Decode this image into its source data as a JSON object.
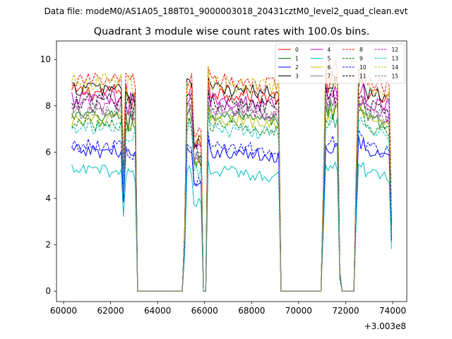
{
  "figure": {
    "supertitle": "Data file: modeM0/AS1A05_188T01_9000003018_20431cztM0_level2_quad_clean.evt"
  },
  "chart_data": {
    "type": "line",
    "title": "Quadrant 3 module wise count rates with 100.0s bins.",
    "xlabel": "",
    "ylabel": "",
    "x_offset_label": "+3.003e8",
    "xlim": [
      59700,
      74600
    ],
    "ylim": [
      -0.45,
      10.8
    ],
    "x_ticks": [
      60000,
      62000,
      64000,
      66000,
      68000,
      70000,
      72000,
      74000
    ],
    "x_tick_labels": [
      "60000",
      "62000",
      "64000",
      "66000",
      "68000",
      "70000",
      "72000",
      "74000"
    ],
    "y_ticks": [
      0,
      2,
      4,
      6,
      8,
      10
    ],
    "y_tick_labels": [
      "0",
      "2",
      "4",
      "6",
      "8",
      "10"
    ],
    "grid": false,
    "legend_position": "top-right",
    "legend_columns": 4,
    "bin_seconds": 100,
    "x_start": 60350,
    "active_intervals": [
      [
        60350,
        62450
      ],
      [
        62550,
        63050
      ],
      [
        65350,
        65950
      ],
      [
        66150,
        69150
      ],
      [
        71050,
        71850
      ],
      [
        72550,
        73950
      ]
    ],
    "zero_intervals": [
      [
        63150,
        65050
      ],
      [
        66050,
        66050
      ],
      [
        69250,
        70950
      ],
      [
        72050,
        72350
      ]
    ],
    "transitions": [
      [
        62450,
        62550,
        0.6
      ],
      [
        63050,
        63150,
        0
      ],
      [
        65050,
        65250,
        0.3
      ],
      [
        65950,
        66050,
        0
      ],
      [
        66050,
        66150,
        1.02
      ],
      [
        69150,
        69250,
        0
      ],
      [
        70950,
        71050,
        0.5
      ],
      [
        71850,
        72050,
        0.1
      ],
      [
        72350,
        72550,
        0.6
      ],
      [
        73950,
        73950,
        0.35
      ]
    ],
    "series": [
      {
        "name": "0",
        "color": "#ff0000",
        "dash": "solid",
        "level": 8.6,
        "noise": 0.35
      },
      {
        "name": "1",
        "color": "#008000",
        "dash": "solid",
        "level": 7.55,
        "noise": 0.3
      },
      {
        "name": "2",
        "color": "#0000ff",
        "dash": "solid",
        "level": 6.05,
        "noise": 0.3
      },
      {
        "name": "3",
        "color": "#000000",
        "dash": "solid",
        "level": 8.75,
        "noise": 0.35
      },
      {
        "name": "4",
        "color": "#bf00bf",
        "dash": "solid",
        "level": 8.3,
        "noise": 0.35
      },
      {
        "name": "5",
        "color": "#00bfbf",
        "dash": "solid",
        "level": 5.2,
        "noise": 0.28
      },
      {
        "name": "6",
        "color": "#bfbf00",
        "dash": "solid",
        "level": 7.4,
        "noise": 0.3
      },
      {
        "name": "7",
        "color": "#808080",
        "dash": "solid",
        "level": 7.7,
        "noise": 0.3
      },
      {
        "name": "8",
        "color": "#ff0000",
        "dash": "dashed",
        "level": 9.1,
        "noise": 0.35
      },
      {
        "name": "9",
        "color": "#008000",
        "dash": "dashed",
        "level": 7.2,
        "noise": 0.3
      },
      {
        "name": "10",
        "color": "#0000ff",
        "dash": "dashed",
        "level": 6.3,
        "noise": 0.3
      },
      {
        "name": "11",
        "color": "#000000",
        "dash": "dashed",
        "level": 8.2,
        "noise": 0.35
      },
      {
        "name": "12",
        "color": "#bf00bf",
        "dash": "dashed",
        "level": 7.95,
        "noise": 0.35
      },
      {
        "name": "13",
        "color": "#00bfbf",
        "dash": "dashed",
        "level": 7.0,
        "noise": 0.3
      },
      {
        "name": "14",
        "color": "#bfbf00",
        "dash": "dashed",
        "level": 9.0,
        "noise": 0.4
      },
      {
        "name": "15",
        "color": "#808080",
        "dash": "dashed",
        "level": 7.85,
        "noise": 0.3
      }
    ]
  }
}
